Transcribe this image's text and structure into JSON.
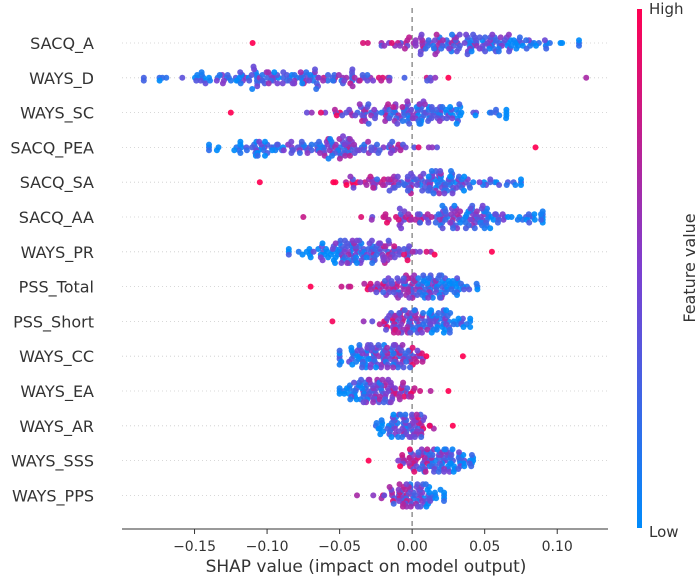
{
  "chart_data": {
    "type": "scatter",
    "subtype": "shap-beeswarm",
    "title": "",
    "xlabel": "SHAP value (impact on model output)",
    "ylabel": "",
    "xlim": [
      -0.2,
      0.135
    ],
    "xticks": [
      -0.15,
      -0.1,
      -0.05,
      0.0,
      0.05,
      0.1
    ],
    "xtick_labels": [
      "−0.15",
      "−0.10",
      "−0.05",
      "0.00",
      "0.05",
      "0.10"
    ],
    "zero_line": 0.0,
    "colorbar": {
      "label": "Feature value",
      "high_label": "High",
      "low_label": "Low",
      "low_color": "#008bfb",
      "high_color": "#ff0052"
    },
    "features": [
      {
        "name": "SACQ_A",
        "min": -0.11,
        "max": 0.115,
        "dominant_low_side": "high",
        "n": 150
      },
      {
        "name": "WAYS_D",
        "min": -0.185,
        "max": 0.12,
        "dominant_low_side": "low",
        "n": 150
      },
      {
        "name": "WAYS_SC",
        "min": -0.125,
        "max": 0.065,
        "dominant_low_side": "high",
        "n": 150
      },
      {
        "name": "SACQ_PEA",
        "min": -0.14,
        "max": 0.085,
        "dominant_low_side": "low",
        "n": 150
      },
      {
        "name": "SACQ_SA",
        "min": -0.105,
        "max": 0.075,
        "dominant_low_side": "high",
        "n": 150
      },
      {
        "name": "SACQ_AA",
        "min": -0.075,
        "max": 0.09,
        "dominant_low_side": "high",
        "n": 150
      },
      {
        "name": "WAYS_PR",
        "min": -0.085,
        "max": 0.055,
        "dominant_low_side": "low",
        "n": 150
      },
      {
        "name": "PSS_Total",
        "min": -0.07,
        "max": 0.045,
        "dominant_low_side": "high",
        "n": 150
      },
      {
        "name": "PSS_Short",
        "min": -0.055,
        "max": 0.04,
        "dominant_low_side": "high",
        "n": 150
      },
      {
        "name": "WAYS_CC",
        "min": -0.05,
        "max": 0.035,
        "dominant_low_side": "low",
        "n": 150
      },
      {
        "name": "WAYS_EA",
        "min": -0.05,
        "max": 0.025,
        "dominant_low_side": "low",
        "n": 150
      },
      {
        "name": "WAYS_AR",
        "min": -0.025,
        "max": 0.028,
        "dominant_low_side": "low",
        "n": 150
      },
      {
        "name": "WAYS_SSS",
        "min": -0.03,
        "max": 0.042,
        "dominant_low_side": "high",
        "n": 150
      },
      {
        "name": "WAYS_PPS",
        "min": -0.038,
        "max": 0.022,
        "dominant_low_side": "high",
        "n": 150
      }
    ]
  }
}
